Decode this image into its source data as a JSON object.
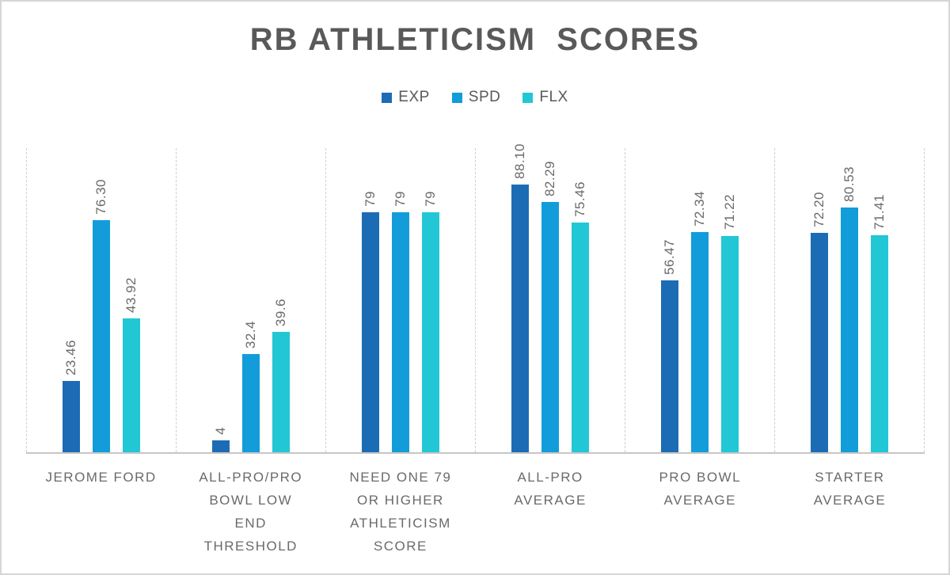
{
  "chart_data": {
    "type": "bar",
    "title": "RB ATHLETICISM  SCORES",
    "legend_position": "top-center",
    "grid": "vertical category separators, dashed; no horizontal gridlines; no y-axis ticks",
    "ylim": [
      0,
      100
    ],
    "categories": [
      {
        "label": "JEROME FORD",
        "lines": [
          "JEROME FORD"
        ]
      },
      {
        "label": "ALL-PRO/PRO BOWL LOW END THRESHOLD",
        "lines": [
          "ALL-PRO/PRO",
          "BOWL LOW",
          "END",
          "THRESHOLD"
        ]
      },
      {
        "label": "NEED ONE 79 OR HIGHER ATHLETICISM SCORE",
        "lines": [
          "NEED ONE 79",
          "OR HIGHER",
          "ATHLETICISM",
          "SCORE"
        ]
      },
      {
        "label": "ALL-PRO AVERAGE",
        "lines": [
          "ALL-PRO",
          "AVERAGE"
        ]
      },
      {
        "label": "PRO BOWL AVERAGE",
        "lines": [
          "PRO BOWL",
          "AVERAGE"
        ]
      },
      {
        "label": "STARTER AVERAGE",
        "lines": [
          "STARTER",
          "AVERAGE"
        ]
      }
    ],
    "series": [
      {
        "name": "EXP",
        "color": "#1c6cb5",
        "values": [
          23.46,
          4,
          79,
          88.1,
          56.47,
          72.2
        ],
        "labels": [
          "23.46",
          "4",
          "79",
          "88.10",
          "56.47",
          "72.20"
        ]
      },
      {
        "name": "SPD",
        "color": "#129dda",
        "values": [
          76.3,
          32.4,
          79,
          82.29,
          72.34,
          80.53
        ],
        "labels": [
          "76.30",
          "32.4",
          "79",
          "82.29",
          "72.34",
          "80.53"
        ]
      },
      {
        "name": "FLX",
        "color": "#22c7d6",
        "values": [
          43.92,
          39.6,
          79,
          75.46,
          71.22,
          71.41
        ],
        "labels": [
          "43.92",
          "39.6",
          "79",
          "75.46",
          "71.22",
          "71.41"
        ]
      }
    ],
    "data_label_rotation": "vertical, reads bottom-to-top, above each bar",
    "colors": {
      "title": "#595959",
      "label": "#6a6a6a",
      "gridline": "#cfcfcf",
      "axis_line": "#c6c6c6",
      "frame_border": "#d6d6d6",
      "background": "#ffffff"
    }
  }
}
